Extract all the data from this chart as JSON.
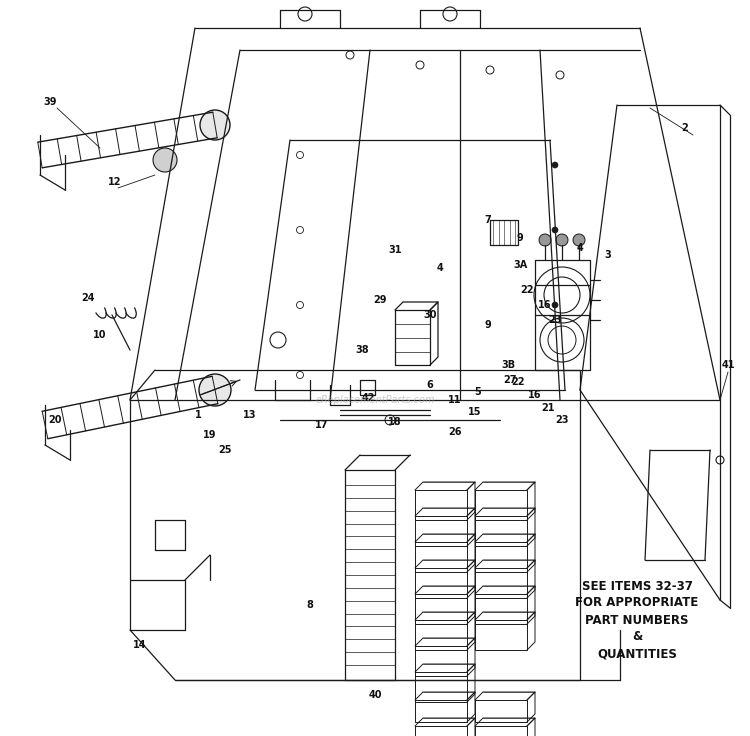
{
  "bg_color": "#ffffff",
  "note_text": "SEE ITEMS 32-37\nFOR APPROPRIATE\nPART NUMBERS\n&\nQUANTITIES",
  "watermark": "eReplacementParts.com",
  "fig_w": 7.5,
  "fig_h": 7.36,
  "dpi": 100,
  "lc": "#1a1a1a",
  "lw": 0.9,
  "label_fontsize": 7.0
}
